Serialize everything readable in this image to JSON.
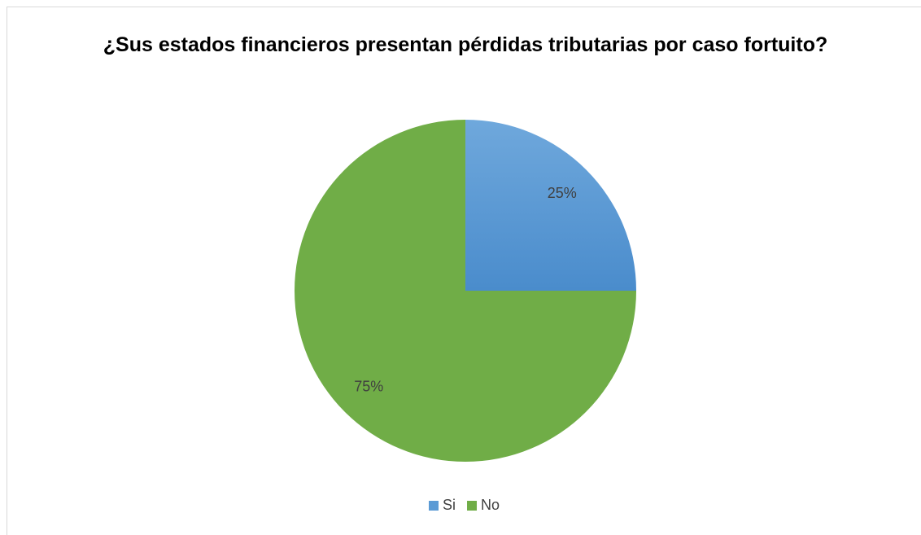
{
  "chart_data": {
    "type": "pie",
    "title": "¿Sus estados financieros presentan pérdidas tributarias por caso fortuito?",
    "categories": [
      "Si",
      "No"
    ],
    "values": [
      25,
      75
    ],
    "value_labels": [
      "25%",
      "75%"
    ],
    "colors": [
      "#5b9bd5",
      "#70ad47"
    ],
    "legend": "bottom"
  }
}
